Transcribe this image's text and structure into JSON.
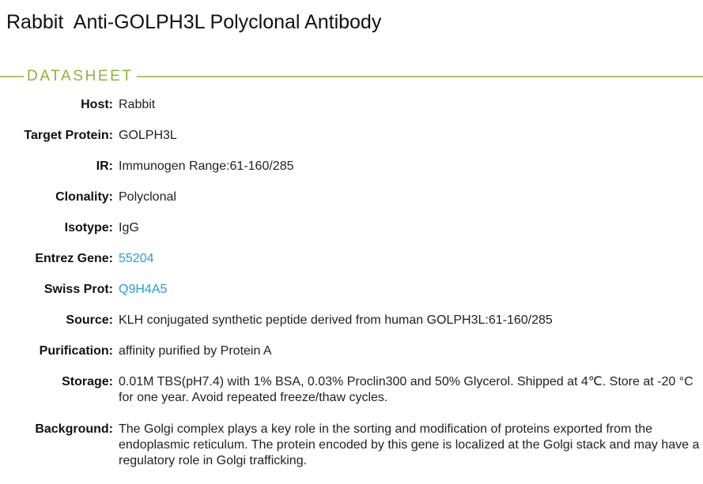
{
  "title": "Rabbit  Anti-GOLPH3L Polyclonal Antibody",
  "section": "DATASHEET",
  "colors": {
    "accent": "#8fb33c",
    "link": "#2a9bc9"
  },
  "fields": [
    {
      "label": "Host:",
      "value": "Rabbit"
    },
    {
      "label": "Target Protein:",
      "value": "GOLPH3L"
    },
    {
      "label": "IR:",
      "value": "Immunogen Range:61-160/285"
    },
    {
      "label": "Clonality:",
      "value": "Polyclonal"
    },
    {
      "label": "Isotype:",
      "value": "IgG"
    },
    {
      "label": "Entrez Gene:",
      "value": "55204"
    },
    {
      "label": "Swiss Prot:",
      "value": "Q9H4A5"
    },
    {
      "label": "Source:",
      "value": "KLH conjugated synthetic peptide derived from human GOLPH3L:61-160/285"
    },
    {
      "label": "Purification:",
      "value": "affinity purified by Protein A"
    },
    {
      "label": "Storage:",
      "value": "0.01M TBS(pH7.4) with 1% BSA, 0.03% Proclin300 and 50% Glycerol. Shipped at 4℃. Store at -20 °C for one year. Avoid repeated freeze/thaw cycles."
    },
    {
      "label": "Background:",
      "value": "The Golgi complex plays a key role in the sorting and modification of proteins exported from the endoplasmic reticulum. The protein encoded by this gene is localized at the Golgi stack and may have a regulatory role in Golgi trafficking."
    }
  ]
}
